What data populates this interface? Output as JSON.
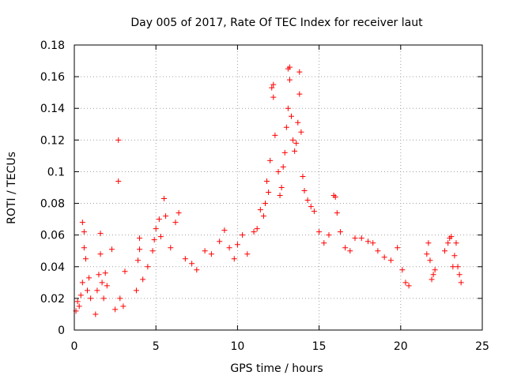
{
  "chart_data": {
    "type": "scatter",
    "title": "Day 005 of 2017, Rate Of TEC Index for receiver laut",
    "xlabel": "GPS time / hours",
    "ylabel": "ROTI / TECUs",
    "xlim": [
      0,
      25
    ],
    "ylim": [
      0,
      0.18
    ],
    "xticks": [
      0,
      5,
      10,
      15,
      20,
      25
    ],
    "yticks": [
      0,
      0.02,
      0.04,
      0.06,
      0.08,
      0.1,
      0.12,
      0.14,
      0.16,
      0.18
    ],
    "x_tick_labels": [
      "0",
      "5",
      "10",
      "15",
      "20",
      "25"
    ],
    "y_tick_labels": [
      "0",
      "0.02",
      "0.04",
      "0.06",
      "0.08",
      "0.1",
      "0.12",
      "0.14",
      "0.16",
      "0.18"
    ],
    "grid": true,
    "marker": "+",
    "color": "#ff0000",
    "series": [
      {
        "points": [
          [
            0.1,
            0.012
          ],
          [
            0.2,
            0.018
          ],
          [
            0.3,
            0.015
          ],
          [
            0.4,
            0.022
          ],
          [
            0.5,
            0.03
          ],
          [
            0.5,
            0.068
          ],
          [
            0.6,
            0.052
          ],
          [
            0.6,
            0.062
          ],
          [
            0.7,
            0.045
          ],
          [
            0.8,
            0.025
          ],
          [
            0.9,
            0.033
          ],
          [
            1.0,
            0.02
          ],
          [
            1.3,
            0.01
          ],
          [
            1.4,
            0.025
          ],
          [
            1.5,
            0.035
          ],
          [
            1.6,
            0.048
          ],
          [
            1.6,
            0.061
          ],
          [
            1.7,
            0.03
          ],
          [
            1.8,
            0.02
          ],
          [
            1.9,
            0.036
          ],
          [
            2.0,
            0.028
          ],
          [
            2.3,
            0.051
          ],
          [
            2.5,
            0.013
          ],
          [
            2.7,
            0.12
          ],
          [
            2.7,
            0.094
          ],
          [
            2.8,
            0.02
          ],
          [
            3.0,
            0.015
          ],
          [
            3.1,
            0.037
          ],
          [
            3.8,
            0.025
          ],
          [
            3.9,
            0.044
          ],
          [
            4.0,
            0.051
          ],
          [
            4.0,
            0.058
          ],
          [
            4.2,
            0.032
          ],
          [
            4.5,
            0.04
          ],
          [
            4.8,
            0.05
          ],
          [
            4.9,
            0.057
          ],
          [
            5.0,
            0.064
          ],
          [
            5.2,
            0.07
          ],
          [
            5.3,
            0.059
          ],
          [
            5.5,
            0.083
          ],
          [
            5.6,
            0.072
          ],
          [
            5.9,
            0.052
          ],
          [
            6.2,
            0.068
          ],
          [
            6.4,
            0.074
          ],
          [
            6.8,
            0.045
          ],
          [
            7.2,
            0.042
          ],
          [
            7.5,
            0.038
          ],
          [
            8.0,
            0.05
          ],
          [
            8.4,
            0.048
          ],
          [
            8.9,
            0.056
          ],
          [
            9.2,
            0.063
          ],
          [
            9.5,
            0.052
          ],
          [
            9.8,
            0.045
          ],
          [
            10.0,
            0.054
          ],
          [
            10.3,
            0.06
          ],
          [
            10.6,
            0.048
          ],
          [
            11.0,
            0.062
          ],
          [
            11.2,
            0.064
          ],
          [
            11.4,
            0.076
          ],
          [
            11.6,
            0.072
          ],
          [
            11.7,
            0.08
          ],
          [
            11.8,
            0.094
          ],
          [
            11.9,
            0.087
          ],
          [
            12.0,
            0.107
          ],
          [
            12.1,
            0.153
          ],
          [
            12.2,
            0.155
          ],
          [
            12.2,
            0.147
          ],
          [
            12.3,
            0.123
          ],
          [
            12.5,
            0.1
          ],
          [
            12.6,
            0.085
          ],
          [
            12.7,
            0.09
          ],
          [
            12.8,
            0.103
          ],
          [
            12.9,
            0.112
          ],
          [
            13.0,
            0.128
          ],
          [
            13.1,
            0.14
          ],
          [
            13.1,
            0.165
          ],
          [
            13.2,
            0.166
          ],
          [
            13.2,
            0.158
          ],
          [
            13.3,
            0.135
          ],
          [
            13.4,
            0.12
          ],
          [
            13.5,
            0.113
          ],
          [
            13.6,
            0.118
          ],
          [
            13.7,
            0.131
          ],
          [
            13.8,
            0.163
          ],
          [
            13.8,
            0.149
          ],
          [
            13.9,
            0.125
          ],
          [
            14.0,
            0.097
          ],
          [
            14.1,
            0.088
          ],
          [
            14.3,
            0.082
          ],
          [
            14.5,
            0.078
          ],
          [
            14.7,
            0.075
          ],
          [
            15.0,
            0.062
          ],
          [
            15.3,
            0.055
          ],
          [
            15.6,
            0.06
          ],
          [
            15.9,
            0.085
          ],
          [
            16.0,
            0.084
          ],
          [
            16.1,
            0.074
          ],
          [
            16.3,
            0.062
          ],
          [
            16.6,
            0.052
          ],
          [
            16.9,
            0.05
          ],
          [
            17.2,
            0.058
          ],
          [
            17.6,
            0.058
          ],
          [
            18.0,
            0.056
          ],
          [
            18.3,
            0.055
          ],
          [
            18.6,
            0.05
          ],
          [
            19.0,
            0.046
          ],
          [
            19.4,
            0.044
          ],
          [
            19.8,
            0.052
          ],
          [
            20.1,
            0.038
          ],
          [
            20.3,
            0.03
          ],
          [
            20.5,
            0.028
          ],
          [
            21.6,
            0.048
          ],
          [
            21.7,
            0.055
          ],
          [
            21.8,
            0.044
          ],
          [
            21.9,
            0.032
          ],
          [
            22.0,
            0.035
          ],
          [
            22.1,
            0.038
          ],
          [
            22.7,
            0.05
          ],
          [
            22.9,
            0.055
          ],
          [
            23.0,
            0.058
          ],
          [
            23.1,
            0.059
          ],
          [
            23.2,
            0.04
          ],
          [
            23.3,
            0.047
          ],
          [
            23.4,
            0.055
          ],
          [
            23.5,
            0.04
          ],
          [
            23.6,
            0.035
          ],
          [
            23.7,
            0.03
          ]
        ]
      }
    ]
  }
}
